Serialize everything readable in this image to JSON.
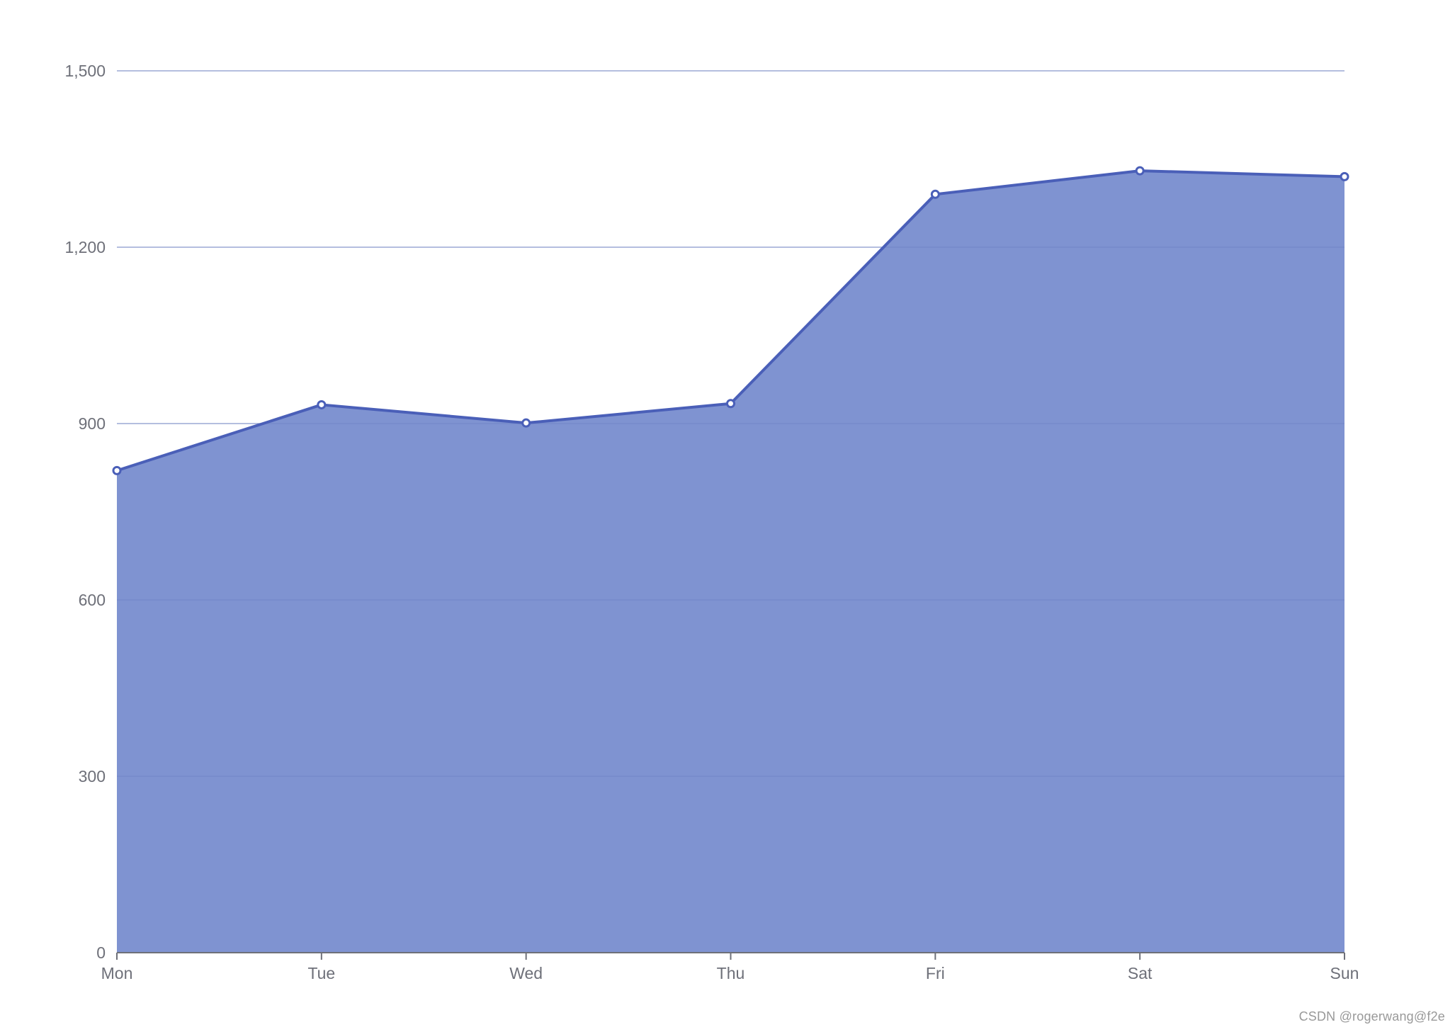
{
  "chart_data": {
    "type": "area",
    "categories": [
      "Mon",
      "Tue",
      "Wed",
      "Thu",
      "Fri",
      "Sat",
      "Sun"
    ],
    "series": [
      {
        "values": [
          820,
          932,
          901,
          934,
          1290,
          1330,
          1320
        ]
      }
    ],
    "ylim": [
      0,
      1500
    ],
    "yticks": [
      "0",
      "300",
      "600",
      "900",
      "1,200",
      "1,500"
    ],
    "grid": true,
    "colors": {
      "line": "#4a5fb8",
      "fill": "#7f93d1",
      "grid": "#e0e3ea",
      "axis": "#6e7079",
      "label": "#6e7079",
      "marker_fill": "#ffffff"
    }
  },
  "watermark": "CSDN @rogerwang@f2e"
}
